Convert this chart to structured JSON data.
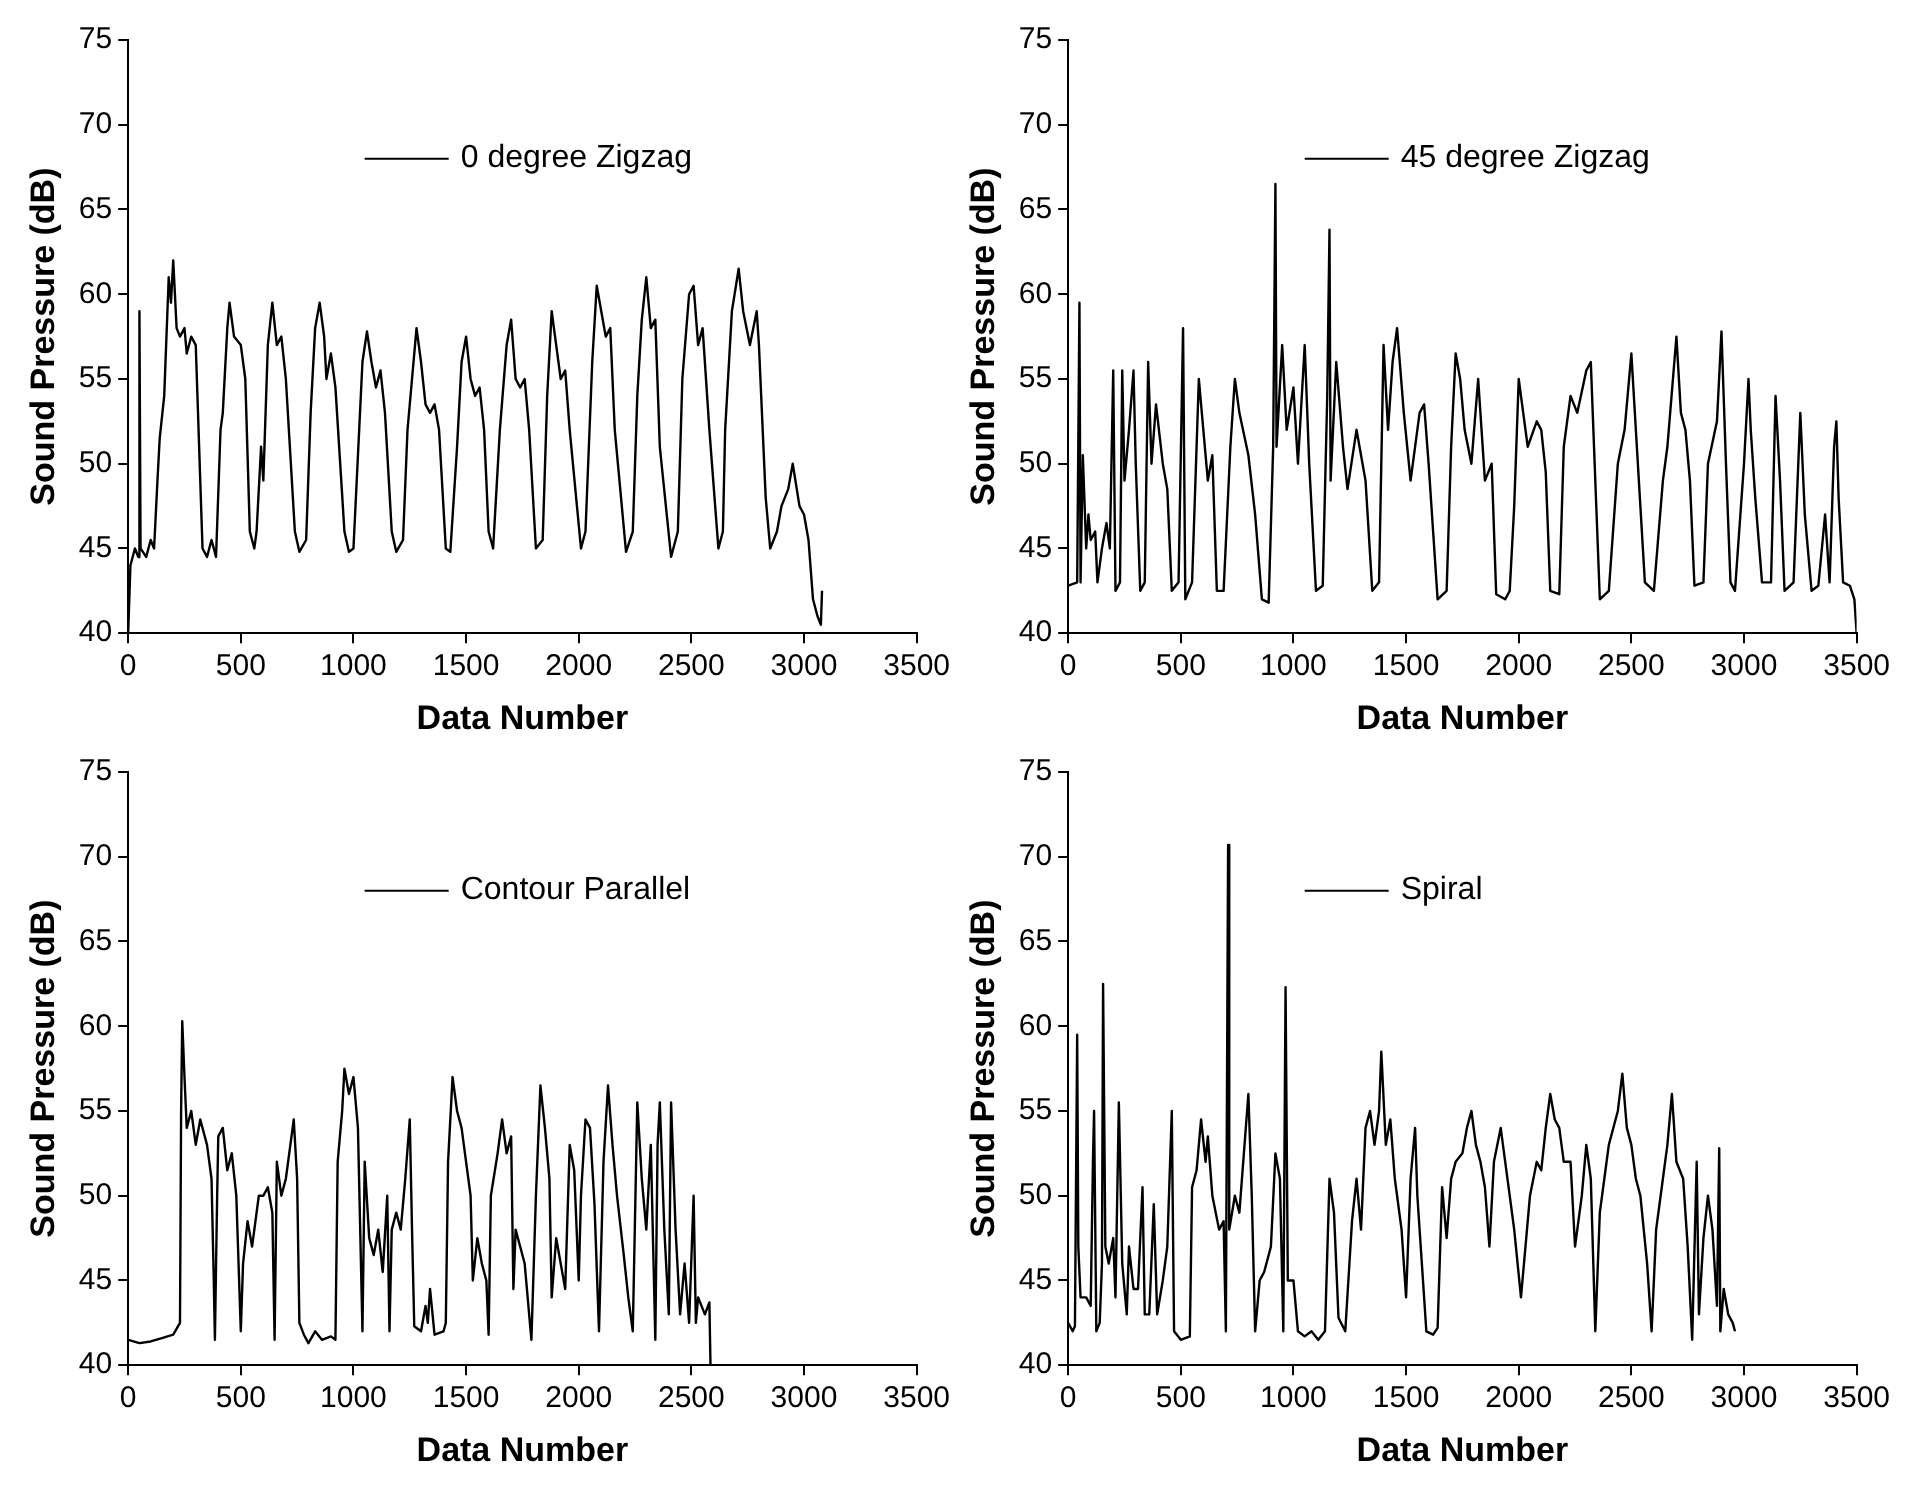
{
  "chart_data": [
    {
      "type": "line",
      "xlabel": "Data Number",
      "ylabel": "Sound Pressure (dB)",
      "xlim": [
        0,
        3500
      ],
      "ylim": [
        40,
        75
      ],
      "xticks": [
        0,
        500,
        1000,
        1500,
        2000,
        2500,
        3000,
        3500
      ],
      "yticks": [
        40,
        45,
        50,
        55,
        60,
        65,
        70,
        75
      ],
      "grid": false,
      "legend": "top",
      "marker": "none",
      "line_style": "solid",
      "series": [
        {
          "name": "0 degree Zigzag",
          "color": "#000000",
          "x": [
            0,
            10,
            30,
            45,
            50,
            55,
            80,
            100,
            115,
            130,
            140,
            160,
            180,
            190,
            200,
            215,
            230,
            250,
            260,
            280,
            300,
            320,
            330,
            350,
            370,
            390,
            410,
            420,
            440,
            450,
            470,
            500,
            520,
            540,
            560,
            570,
            590,
            600,
            620,
            640,
            660,
            680,
            700,
            740,
            760,
            790,
            810,
            830,
            850,
            870,
            880,
            900,
            920,
            960,
            980,
            1000,
            1040,
            1060,
            1080,
            1100,
            1120,
            1140,
            1170,
            1190,
            1220,
            1240,
            1280,
            1300,
            1320,
            1340,
            1360,
            1380,
            1410,
            1430,
            1460,
            1480,
            1500,
            1520,
            1540,
            1560,
            1580,
            1600,
            1620,
            1650,
            1680,
            1700,
            1720,
            1740,
            1760,
            1780,
            1810,
            1840,
            1860,
            1880,
            1900,
            1920,
            1940,
            1960,
            2010,
            2030,
            2060,
            2080,
            2100,
            2120,
            2140,
            2160,
            2210,
            2240,
            2260,
            2280,
            2300,
            2320,
            2340,
            2360,
            2410,
            2440,
            2460,
            2490,
            2510,
            2530,
            2550,
            2580,
            2620,
            2640,
            2650,
            2680,
            2710,
            2730,
            2760,
            2790,
            2800,
            2830,
            2850,
            2880,
            2900,
            2930,
            2950,
            2980,
            3000,
            3020,
            3040,
            3060,
            3075,
            3080
          ],
          "values": [
            40,
            44,
            45,
            44.5,
            59,
            45,
            44.5,
            45.5,
            45,
            49,
            51.5,
            54,
            61,
            59.5,
            62,
            58,
            57.5,
            58,
            56.5,
            57.5,
            57,
            49,
            45,
            44.5,
            45.5,
            44.5,
            52,
            53,
            58,
            59.5,
            57.5,
            57,
            55,
            46,
            45,
            46,
            51,
            49,
            57,
            59.5,
            57,
            57.5,
            55,
            46,
            44.8,
            45.5,
            53,
            58,
            59.5,
            57.5,
            55,
            56.5,
            54.5,
            46,
            44.8,
            45,
            56,
            57.8,
            56,
            54.5,
            55.5,
            53,
            46,
            44.8,
            45.5,
            52,
            58,
            56,
            53.5,
            53,
            53.5,
            52,
            45,
            44.8,
            51,
            56,
            57.5,
            55,
            54,
            54.5,
            52,
            46,
            45,
            52,
            57,
            58.5,
            55,
            54.5,
            55,
            52,
            45,
            45.5,
            54,
            59,
            57,
            55,
            55.5,
            52,
            45,
            46,
            56,
            60.5,
            59,
            57.5,
            58,
            52,
            44.8,
            46,
            54,
            58.5,
            61,
            58,
            58.5,
            51,
            44.5,
            46,
            55,
            60,
            60.5,
            57,
            58,
            52,
            45,
            46,
            52,
            59,
            61.5,
            59,
            57,
            59,
            57,
            48,
            45,
            46,
            47.5,
            48.5,
            50,
            47.5,
            47,
            45.5,
            42,
            41,
            40.5,
            42.5
          ]
        }
      ]
    },
    {
      "type": "line",
      "xlabel": "Data Number",
      "ylabel": "Sound Pressure (dB)",
      "xlim": [
        0,
        3500
      ],
      "ylim": [
        40,
        75
      ],
      "xticks": [
        0,
        500,
        1000,
        1500,
        2000,
        2500,
        3000,
        3500
      ],
      "yticks": [
        40,
        45,
        50,
        55,
        60,
        65,
        70,
        75
      ],
      "grid": false,
      "legend": "top",
      "marker": "none",
      "line_style": "solid",
      "series": [
        {
          "name": "45 degree Zigzag",
          "color": "#000000",
          "x": [
            0,
            40,
            50,
            55,
            65,
            80,
            90,
            100,
            120,
            130,
            150,
            170,
            185,
            200,
            210,
            230,
            240,
            250,
            270,
            290,
            300,
            320,
            340,
            355,
            370,
            390,
            420,
            440,
            460,
            490,
            510,
            520,
            550,
            580,
            600,
            620,
            640,
            660,
            690,
            720,
            740,
            760,
            800,
            830,
            860,
            890,
            910,
            920,
            925,
            950,
            970,
            1000,
            1020,
            1050,
            1070,
            1100,
            1130,
            1150,
            1160,
            1165,
            1190,
            1220,
            1240,
            1280,
            1320,
            1350,
            1380,
            1400,
            1420,
            1440,
            1460,
            1490,
            1520,
            1560,
            1580,
            1600,
            1620,
            1640,
            1680,
            1700,
            1720,
            1740,
            1760,
            1790,
            1820,
            1850,
            1880,
            1900,
            1940,
            1960,
            1980,
            2000,
            2020,
            2040,
            2080,
            2100,
            2120,
            2140,
            2180,
            2200,
            2230,
            2260,
            2300,
            2320,
            2360,
            2400,
            2440,
            2470,
            2500,
            2520,
            2560,
            2600,
            2640,
            2660,
            2700,
            2720,
            2740,
            2760,
            2780,
            2820,
            2840,
            2880,
            2900,
            2920,
            2940,
            2960,
            3000,
            3020,
            3030,
            3050,
            3080,
            3120,
            3140,
            3160,
            3180,
            3220,
            3250,
            3270,
            3300,
            3330,
            3360,
            3380,
            3400,
            3410,
            3420,
            3440,
            3470,
            3490,
            3500
          ],
          "values": [
            42.8,
            43,
            59.5,
            43,
            50.5,
            45,
            47,
            45.5,
            46,
            43,
            45,
            46.5,
            45,
            55.5,
            42.5,
            43,
            55.5,
            49,
            52,
            55.5,
            50,
            42.5,
            43,
            56,
            50,
            53.5,
            50,
            48.5,
            42.5,
            43,
            58,
            42,
            43,
            55,
            52,
            49,
            50.5,
            42.5,
            42.5,
            51,
            55,
            53,
            50.5,
            47,
            42,
            41.8,
            51,
            66.5,
            51,
            57,
            52,
            54.5,
            50,
            57,
            50,
            42.5,
            42.8,
            54,
            63.8,
            49,
            56,
            51,
            48.5,
            52,
            49,
            42.5,
            43,
            57,
            52,
            56,
            58,
            53,
            49,
            53,
            53.5,
            50,
            46,
            42,
            42.5,
            51,
            56.5,
            55,
            52,
            50,
            55,
            49,
            50,
            42.3,
            42,
            42.5,
            47.5,
            55,
            53,
            51,
            52.5,
            52,
            49.5,
            42.5,
            42.3,
            51,
            54,
            53,
            55.5,
            56,
            42,
            42.5,
            50,
            52,
            56.5,
            52,
            43,
            42.5,
            49,
            51,
            57.5,
            53,
            52,
            49,
            42.8,
            43,
            50,
            52.5,
            57.8,
            50,
            43,
            42.5,
            50,
            55,
            52,
            48,
            43,
            43,
            54,
            49,
            42.5,
            43,
            53,
            47,
            42.5,
            42.8,
            47,
            43,
            51,
            52.5,
            48,
            43,
            42.8,
            42,
            40
          ]
        }
      ]
    },
    {
      "type": "line",
      "xlabel": "Data Number",
      "ylabel": "Sound Pressure (dB)",
      "xlim": [
        0,
        3500
      ],
      "ylim": [
        40,
        75
      ],
      "xticks": [
        0,
        500,
        1000,
        1500,
        2000,
        2500,
        3000,
        3500
      ],
      "yticks": [
        40,
        45,
        50,
        55,
        60,
        65,
        70,
        75
      ],
      "grid": false,
      "legend": "top",
      "marker": "none",
      "line_style": "solid",
      "series": [
        {
          "name": "Contour Parallel",
          "color": "#000000",
          "x": [
            0,
            50,
            100,
            150,
            200,
            230,
            235,
            240,
            250,
            260,
            280,
            300,
            320,
            350,
            370,
            380,
            385,
            395,
            400,
            420,
            440,
            460,
            480,
            500,
            510,
            530,
            550,
            580,
            600,
            620,
            640,
            650,
            660,
            680,
            700,
            720,
            735,
            750,
            760,
            780,
            800,
            830,
            860,
            900,
            920,
            930,
            950,
            960,
            980,
            1000,
            1020,
            1040,
            1050,
            1070,
            1090,
            1110,
            1130,
            1150,
            1160,
            1170,
            1190,
            1210,
            1230,
            1250,
            1260,
            1270,
            1300,
            1320,
            1330,
            1340,
            1360,
            1400,
            1410,
            1420,
            1440,
            1460,
            1480,
            1500,
            1520,
            1530,
            1550,
            1570,
            1590,
            1600,
            1610,
            1640,
            1660,
            1680,
            1700,
            1710,
            1720,
            1740,
            1760,
            1790,
            1810,
            1830,
            1850,
            1870,
            1880,
            1900,
            1920,
            1940,
            1960,
            1980,
            2000,
            2010,
            2030,
            2050,
            2070,
            2090,
            2110,
            2130,
            2150,
            2170,
            2200,
            2220,
            2240,
            2260,
            2280,
            2300,
            2320,
            2340,
            2350,
            2360,
            2380,
            2400,
            2410,
            2430,
            2450,
            2470,
            2490,
            2510,
            2520,
            2530,
            2560,
            2580,
            2585
          ],
          "values": [
            41.5,
            41.3,
            41.4,
            41.6,
            41.8,
            42.5,
            55,
            60.3,
            57,
            54,
            55,
            53,
            54.5,
            53,
            51,
            45,
            41.5,
            50,
            53.5,
            54,
            51.5,
            52.5,
            50,
            42,
            46,
            48.5,
            47,
            50,
            50,
            50.5,
            49,
            41.5,
            52,
            50,
            51,
            53,
            54.5,
            51,
            42.5,
            41.8,
            41.3,
            42,
            41.5,
            41.7,
            41.5,
            52,
            55,
            57.5,
            56,
            57,
            54,
            42,
            52,
            47.5,
            46.5,
            48,
            45.5,
            50,
            42,
            48,
            49,
            48,
            51,
            54.5,
            48,
            42.3,
            42,
            43.5,
            42.5,
            44.5,
            41.8,
            42,
            42.5,
            52,
            57,
            55,
            54,
            52,
            50,
            45,
            47.5,
            46,
            45,
            41.8,
            50,
            52.5,
            54.5,
            52.5,
            53.5,
            44.5,
            48,
            47,
            46,
            41.5,
            50,
            56.5,
            54,
            51,
            44,
            47.5,
            46,
            44.5,
            53,
            51.5,
            45,
            50,
            54.5,
            54,
            49.5,
            42,
            52,
            56.5,
            53,
            50,
            46.5,
            44,
            42,
            55.5,
            51,
            48,
            53,
            41.5,
            53,
            55.5,
            48,
            43,
            55.5,
            48,
            43,
            46,
            42.5,
            50,
            42.5,
            44,
            43,
            43.7,
            40
          ]
        }
      ]
    },
    {
      "type": "line",
      "xlabel": "Data Number",
      "ylabel": "Sound Pressure (dB)",
      "xlim": [
        0,
        3500
      ],
      "ylim": [
        40,
        75
      ],
      "xticks": [
        0,
        500,
        1000,
        1500,
        2000,
        2500,
        3000,
        3500
      ],
      "yticks": [
        40,
        45,
        50,
        55,
        60,
        65,
        70,
        75
      ],
      "grid": false,
      "legend": "top",
      "marker": "none",
      "line_style": "solid",
      "series": [
        {
          "name": "Spiral",
          "color": "#000000",
          "x": [
            0,
            20,
            30,
            40,
            45,
            55,
            80,
            100,
            110,
            115,
            125,
            140,
            150,
            155,
            165,
            180,
            200,
            210,
            225,
            240,
            260,
            270,
            290,
            310,
            330,
            340,
            360,
            380,
            395,
            420,
            440,
            460,
            470,
            500,
            540,
            550,
            570,
            590,
            610,
            620,
            640,
            670,
            690,
            700,
            710,
            715,
            740,
            760,
            780,
            800,
            815,
            830,
            850,
            870,
            900,
            920,
            940,
            955,
            965,
            975,
            1000,
            1020,
            1050,
            1080,
            1110,
            1140,
            1160,
            1180,
            1200,
            1230,
            1260,
            1280,
            1300,
            1320,
            1340,
            1360,
            1380,
            1390,
            1410,
            1430,
            1450,
            1480,
            1500,
            1520,
            1540,
            1550,
            1570,
            1590,
            1620,
            1640,
            1660,
            1680,
            1700,
            1720,
            1750,
            1770,
            1790,
            1810,
            1830,
            1850,
            1870,
            1890,
            1920,
            1940,
            1960,
            1980,
            2010,
            2030,
            2050,
            2080,
            2100,
            2120,
            2140,
            2160,
            2180,
            2200,
            2230,
            2250,
            2280,
            2300,
            2320,
            2340,
            2360,
            2380,
            2400,
            2440,
            2460,
            2480,
            2500,
            2520,
            2540,
            2570,
            2590,
            2610,
            2640,
            2660,
            2680,
            2700,
            2730,
            2750,
            2770,
            2790,
            2800,
            2820,
            2840,
            2860,
            2880,
            2890,
            2895,
            2910,
            2930,
            2950,
            2960
          ],
          "values": [
            42.5,
            42,
            42.3,
            59.5,
            47,
            44,
            44,
            43.5,
            52,
            55,
            42,
            42.5,
            46,
            62.5,
            47,
            46,
            47.5,
            44,
            55.5,
            46,
            43,
            47,
            44.5,
            44.5,
            50.5,
            43,
            43,
            49.5,
            43,
            45,
            47,
            55,
            42,
            41.5,
            41.7,
            50.5,
            51.5,
            54.5,
            52,
            53.5,
            50,
            48,
            48.5,
            42,
            70.7,
            48,
            50,
            49,
            52.5,
            56,
            50,
            42,
            45,
            45.5,
            47,
            52.5,
            51,
            42,
            62.3,
            45,
            45,
            42,
            41.7,
            42,
            41.5,
            42,
            51,
            49,
            42.8,
            42,
            48.5,
            51,
            48,
            54,
            55,
            53,
            55,
            58.5,
            53,
            54.5,
            51,
            48,
            44,
            51,
            54,
            50,
            46,
            42,
            41.8,
            42.2,
            50.5,
            47.5,
            51,
            52,
            52.5,
            54,
            55,
            53,
            52,
            50.5,
            47,
            52,
            54,
            52,
            50,
            48,
            44,
            47,
            50,
            52,
            51.5,
            54,
            56,
            54.5,
            54,
            52,
            52,
            47,
            50,
            53,
            51,
            42,
            49,
            51,
            53,
            55,
            57.2,
            54,
            53,
            51,
            50,
            46,
            42,
            48,
            51,
            53,
            56,
            52,
            51,
            47,
            41.5,
            52,
            43,
            47.5,
            50,
            48,
            43.5,
            52.8,
            42,
            44.5,
            43,
            42.5,
            42
          ]
        }
      ]
    }
  ]
}
